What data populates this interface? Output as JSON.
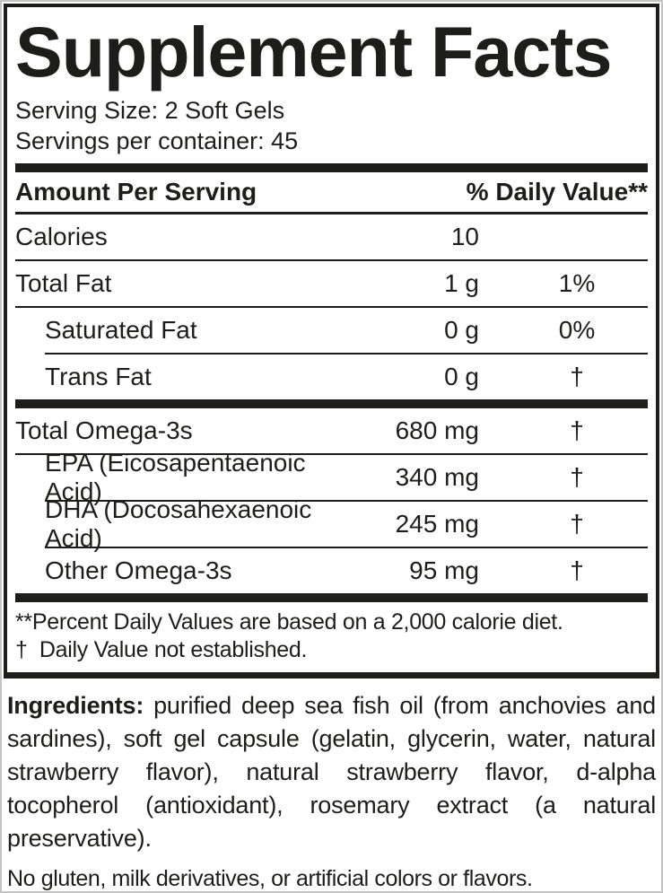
{
  "panel": {
    "title": "Supplement Facts",
    "serving_size": "Serving Size: 2 Soft Gels",
    "servings_per_container": "Servings per container: 45",
    "header": {
      "amount_label": "Amount Per Serving",
      "daily_value_label": "% Daily Value**"
    },
    "rows": [
      {
        "name": "Calories",
        "amount": "10",
        "dv": ""
      },
      {
        "name": "Total Fat",
        "amount": "1 g",
        "dv": "1%"
      },
      {
        "name": "Saturated Fat",
        "amount": "0 g",
        "dv": "0%"
      },
      {
        "name": "Trans Fat",
        "amount": "0 g",
        "dv": "†"
      },
      {
        "name": "Total Omega-3s",
        "amount": "680 mg",
        "dv": "†"
      },
      {
        "name": "EPA (Eicosapentaenoic Acid)",
        "amount": "340 mg",
        "dv": "†"
      },
      {
        "name": "DHA (Docosahexaenoic Acid)",
        "amount": "245 mg",
        "dv": "†"
      },
      {
        "name": "Other Omega-3s",
        "amount": "95 mg",
        "dv": "†"
      }
    ],
    "footnotes": {
      "percent_dv": "**Percent Daily Values are based on a 2,000 calorie diet.",
      "dagger": "†  Daily Value not established."
    }
  },
  "ingredients": {
    "label": "Ingredients:",
    "text": " purified deep sea fish oil (from anchovies and sardines), soft gel capsule (gelatin, glycerin, water, natural strawberry flavor), natural strawberry flavor, d-alpha tocopherol (antioxidant), rosemary extract (a natural preservative)."
  },
  "allergen_note": "No gluten, milk derivatives, or artificial colors or flavors.",
  "colors": {
    "text": "#1d1d1b",
    "background": "#ffffff",
    "border": "#1d1d1b"
  }
}
